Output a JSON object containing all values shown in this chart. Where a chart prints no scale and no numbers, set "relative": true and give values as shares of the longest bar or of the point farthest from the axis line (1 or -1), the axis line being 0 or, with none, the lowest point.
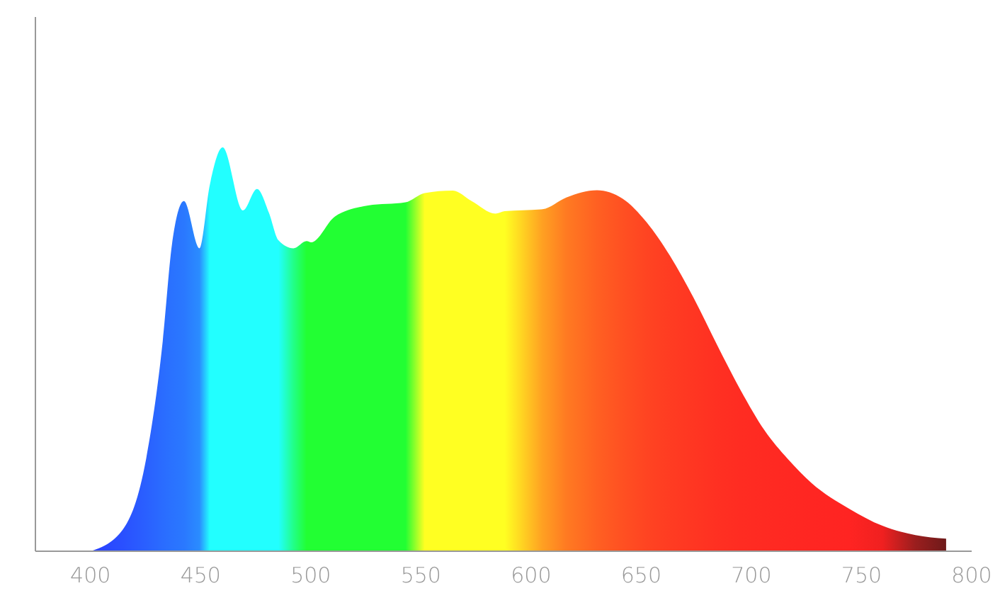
{
  "chart_data": {
    "type": "area",
    "relative": true,
    "x": [
      400,
      414.6,
      425.3,
      432.8,
      437,
      442.4,
      449.5,
      454.2,
      460,
      469.2,
      475.6,
      481,
      485.3,
      492.1,
      498.1,
      500.2,
      511,
      526,
      543,
      551.7,
      564.5,
      573,
      583.8,
      588,
      605.2,
      616,
      629.9,
      641.6,
      652.4,
      663,
      673.8,
      684.5,
      695.2,
      705.9,
      716.6,
      727.3,
      744.5,
      759.5,
      774.5,
      788.4
    ],
    "values": [
      0,
      0.053,
      0.23,
      0.52,
      0.76,
      0.867,
      0.75,
      0.908,
      1.0,
      0.844,
      0.897,
      0.838,
      0.77,
      0.75,
      0.768,
      0.765,
      0.829,
      0.856,
      0.864,
      0.887,
      0.893,
      0.867,
      0.836,
      0.842,
      0.847,
      0.876,
      0.894,
      0.873,
      0.815,
      0.732,
      0.627,
      0.51,
      0.398,
      0.3,
      0.228,
      0.169,
      0.105,
      0.063,
      0.04,
      0.031
    ],
    "colors": [
      "#2a40ff",
      "#2a50ff",
      "#2a60ff",
      "#2a6cff",
      "#2a72ff",
      "#2a78ff",
      "#2a8cff",
      "#22ffff",
      "#22ffff",
      "#22ffff",
      "#22ffff",
      "#22ffff",
      "#22ffff",
      "#22ff88",
      "#22ff33",
      "#22ff33",
      "#22ff33",
      "#22ff33",
      "#22ff33",
      "#ffff22",
      "#ffff22",
      "#ffff22",
      "#ffff22",
      "#ffff22",
      "#ffa022",
      "#ff7a22",
      "#ff6022",
      "#ff5022",
      "#ff4422",
      "#ff3c22",
      "#ff3622",
      "#ff3022",
      "#ff2c22",
      "#ff2a22",
      "#ff2822",
      "#ff2622",
      "#ff2422",
      "#f02020",
      "#9a1e1e",
      "#6e1a1a"
    ],
    "xlim": [
      375,
      800
    ],
    "xticks": [
      400,
      450,
      500,
      550,
      600,
      650,
      700,
      750,
      800
    ]
  }
}
